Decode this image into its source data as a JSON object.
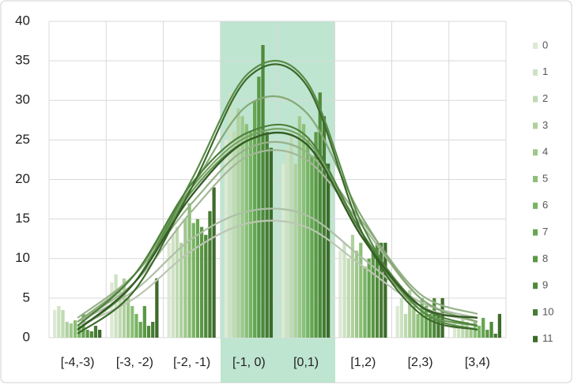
{
  "chart_data": {
    "type": "bar-with-smooth-fits",
    "categories": [
      "[-4,-3)",
      "[-3, -2)",
      "[-2, -1)",
      "[-1, 0)",
      "[0,1)",
      "[1,2)",
      "[2,3)",
      "[3,4)"
    ],
    "ylim": [
      0,
      40
    ],
    "yticks": [
      0,
      5,
      10,
      15,
      20,
      25,
      30,
      35,
      40
    ],
    "grid": true,
    "legend": "right",
    "series": [
      {
        "name": "0",
        "color": "#dde9d3",
        "values": [
          3.5,
          7,
          12,
          25,
          22,
          11,
          4,
          2
        ],
        "fit": [
          1.5,
          5,
          11,
          14.5,
          14,
          9,
          4,
          2
        ]
      },
      {
        "name": "1",
        "color": "#cde2c3",
        "values": [
          4,
          8,
          13,
          31,
          24,
          12,
          5,
          1.5
        ],
        "fit": [
          2,
          6,
          12.5,
          16,
          15.5,
          10,
          4.5,
          2.5
        ]
      },
      {
        "name": "2",
        "color": "#c0d9b2",
        "values": [
          3.5,
          6,
          14,
          26,
          26,
          10,
          3,
          3
        ],
        "fit": [
          2,
          7,
          16,
          23,
          22.5,
          14,
          5,
          2
        ]
      },
      {
        "name": "3",
        "color": "#b0d19f",
        "values": [
          2,
          7.5,
          12,
          29,
          22,
          13,
          6,
          2
        ],
        "fit": [
          2.5,
          8,
          17,
          24,
          23.5,
          14.5,
          5.5,
          3
        ]
      },
      {
        "name": "4",
        "color": "#9fc78c",
        "values": [
          1.8,
          5,
          15,
          28,
          28,
          11,
          4,
          1
        ],
        "fit": [
          2,
          8,
          19,
          29.5,
          28.5,
          15,
          5,
          2
        ]
      },
      {
        "name": "5",
        "color": "#8cbf77",
        "values": [
          2.2,
          4,
          17,
          27,
          27,
          12,
          3,
          2
        ],
        "fit": [
          1.5,
          8,
          19,
          25.5,
          25,
          13,
          4,
          1.5
        ]
      },
      {
        "name": "6",
        "color": "#78b462",
        "values": [
          1.5,
          3,
          14.5,
          26,
          25,
          9,
          5,
          1.5
        ],
        "fit": [
          1,
          7,
          18.5,
          25,
          24.5,
          12.5,
          3.5,
          1.5
        ]
      },
      {
        "name": "7",
        "color": "#67a552",
        "values": [
          3,
          2,
          15,
          30,
          23,
          10,
          4,
          2.5
        ],
        "fit": [
          1,
          7,
          20,
          33.5,
          32.5,
          14,
          3.5,
          1
        ]
      },
      {
        "name": "8",
        "color": "#5b9845",
        "values": [
          1,
          4,
          14,
          33,
          26,
          11,
          3,
          1
        ],
        "fit": [
          1.5,
          8,
          19.5,
          26,
          25.5,
          13,
          4,
          1.5
        ]
      },
      {
        "name": "9",
        "color": "#4e8a3a",
        "values": [
          0.8,
          1.5,
          13,
          37,
          31,
          12,
          5,
          2
        ],
        "fit": [
          1,
          7,
          18,
          25,
          24.5,
          12.5,
          4,
          2.5
        ]
      },
      {
        "name": "10",
        "color": "#477c33",
        "values": [
          1.5,
          2,
          16,
          26,
          28,
          12,
          3,
          0.5
        ],
        "fit": [
          0.5,
          6,
          19,
          33,
          32,
          13,
          3,
          1
        ]
      },
      {
        "name": "11",
        "color": "#3d6b2b",
        "values": [
          1,
          7.5,
          19,
          24,
          22,
          12,
          5,
          3
        ],
        "fit": [
          1,
          7,
          18,
          25,
          24.5,
          12.5,
          4,
          2.5
        ]
      }
    ]
  }
}
